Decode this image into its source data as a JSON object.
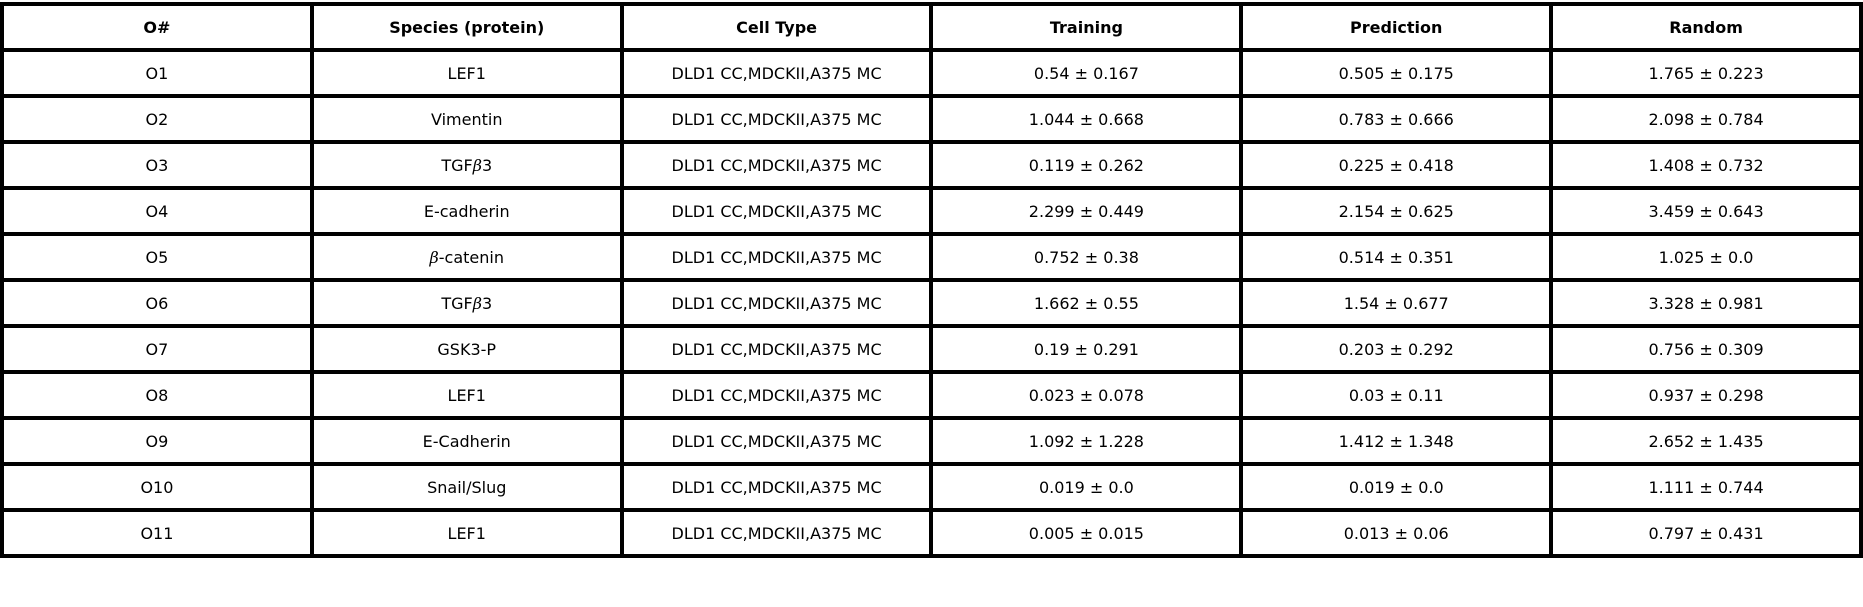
{
  "table": {
    "headers": [
      "O#",
      "Species (protein)",
      "Cell Type",
      "Training",
      "Prediction",
      "Random"
    ],
    "rows": [
      [
        "O1",
        "LEF1",
        "DLD1 CC,MDCKII,A375 MC",
        "0.54 ± 0.167",
        "0.505 ± 0.175",
        "1.765 ± 0.223"
      ],
      [
        "O2",
        "Vimentin",
        "DLD1 CC,MDCKII,A375 MC",
        "1.044 ± 0.668",
        "0.783 ± 0.666",
        "2.098 ± 0.784"
      ],
      [
        "O3",
        "TGFβ3",
        "DLD1 CC,MDCKII,A375 MC",
        "0.119 ± 0.262",
        "0.225 ± 0.418",
        "1.408 ± 0.732"
      ],
      [
        "O4",
        "E-cadherin",
        "DLD1 CC,MDCKII,A375 MC",
        "2.299 ± 0.449",
        "2.154 ± 0.625",
        "3.459 ± 0.643"
      ],
      [
        "O5",
        "β-catenin",
        "DLD1 CC,MDCKII,A375 MC",
        "0.752 ± 0.38",
        "0.514 ± 0.351",
        "1.025 ± 0.0"
      ],
      [
        "O6",
        "TGFβ3",
        "DLD1 CC,MDCKII,A375 MC",
        "1.662 ± 0.55",
        "1.54 ± 0.677",
        "3.328 ± 0.981"
      ],
      [
        "O7",
        "GSK3-P",
        "DLD1 CC,MDCKII,A375 MC",
        "0.19 ± 0.291",
        "0.203 ± 0.292",
        "0.756 ± 0.309"
      ],
      [
        "O8",
        "LEF1",
        "DLD1 CC,MDCKII,A375 MC",
        "0.023 ± 0.078",
        "0.03 ± 0.11",
        "0.937 ± 0.298"
      ],
      [
        "O9",
        "E-Cadherin",
        "DLD1 CC,MDCKII,A375 MC",
        "1.092 ± 1.228",
        "1.412 ± 1.348",
        "2.652 ± 1.435"
      ],
      [
        "O10",
        "Snail/Slug",
        "DLD1 CC,MDCKII,A375 MC",
        "0.019 ± 0.0",
        "0.019 ± 0.0",
        "1.111 ± 0.744"
      ],
      [
        "O11",
        "LEF1",
        "DLD1 CC,MDCKII,A375 MC",
        "0.005 ± 0.015",
        "0.013 ± 0.06",
        "0.797 ± 0.431"
      ]
    ]
  }
}
